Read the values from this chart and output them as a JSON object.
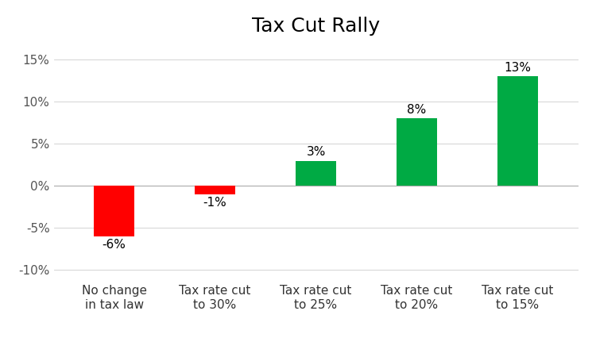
{
  "title": "Tax Cut Rally",
  "categories": [
    "No change\nin tax law",
    "Tax rate cut\nto 30%",
    "Tax rate cut\nto 25%",
    "Tax rate cut\nto 20%",
    "Tax rate cut\nto 15%"
  ],
  "values": [
    -6,
    -1,
    3,
    8,
    13
  ],
  "bar_colors": [
    "#ff0000",
    "#ff0000",
    "#00aa44",
    "#00aa44",
    "#00aa44"
  ],
  "value_labels": [
    "-6%",
    "-1%",
    "3%",
    "8%",
    "13%"
  ],
  "ylim": [
    -11,
    17
  ],
  "yticks": [
    -10,
    -5,
    0,
    5,
    10,
    15
  ],
  "ytick_labels": [
    "-10%",
    "-5%",
    "0%",
    "5%",
    "10%",
    "15%"
  ],
  "title_fontsize": 18,
  "label_fontsize": 11,
  "tick_fontsize": 11,
  "bar_width": 0.4,
  "background_color": "#ffffff"
}
